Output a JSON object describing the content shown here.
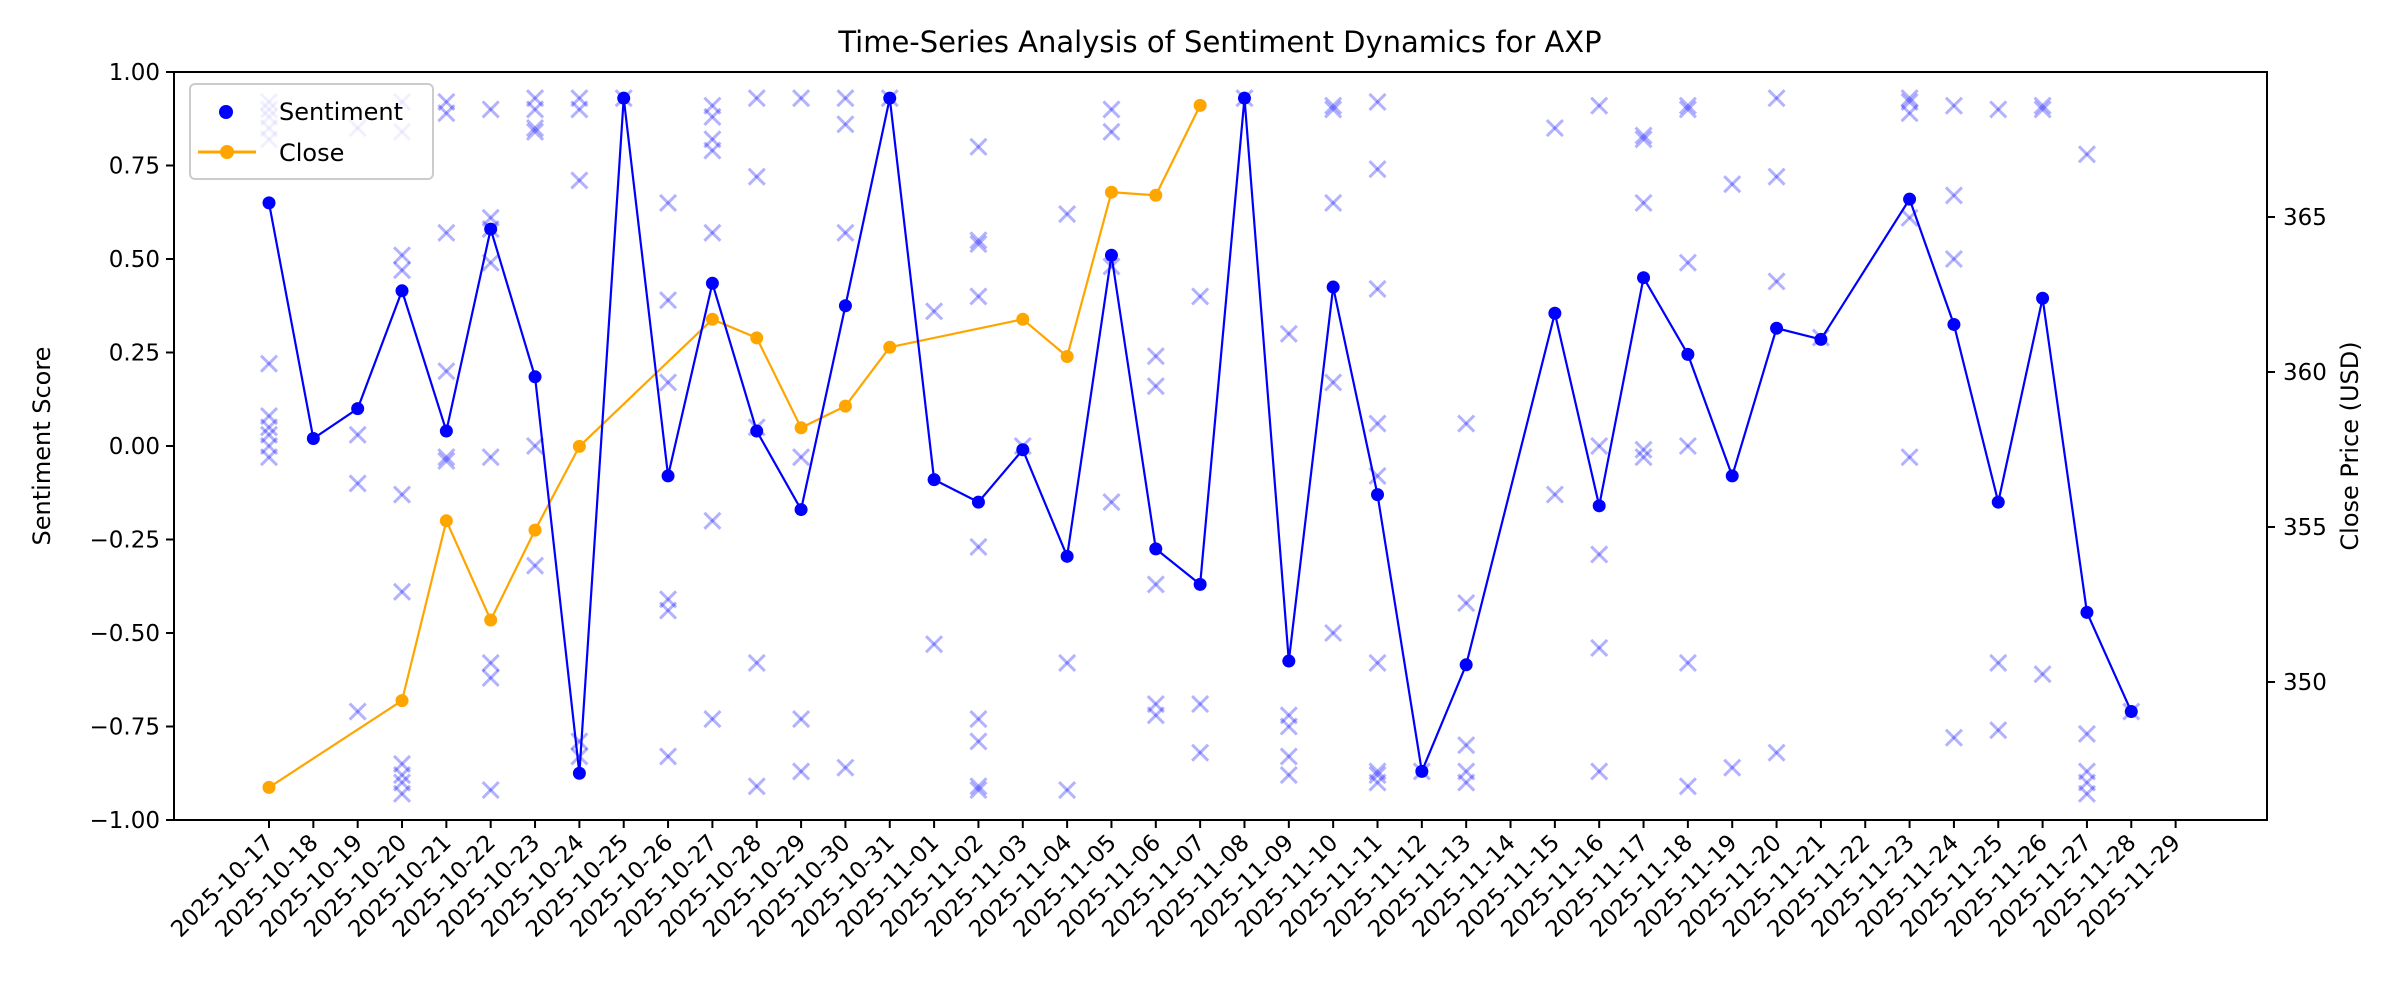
{
  "chart_data": {
    "type": "line",
    "title": "Time-Series Analysis of Sentiment Dynamics for AXP",
    "xlabel": "",
    "ylabel": "Sentiment Score",
    "ylabel_right": "Close Price (USD)",
    "ylim": [
      -1.0,
      1.0
    ],
    "ylim_right_ticks": [
      350,
      355,
      360,
      365
    ],
    "yticks": [
      "1.00",
      "0.75",
      "0.50",
      "0.25",
      "0.00",
      "−0.25",
      "−0.50",
      "−0.75",
      "−1.00"
    ],
    "grid": false,
    "legend_position": "upper left",
    "legend": [
      "Sentiment",
      "Close"
    ],
    "colors": {
      "sentiment": "#0000ff",
      "close": "#ffa500",
      "articles": "#0000ff"
    },
    "categories": [
      "2025-10-17",
      "2025-10-18",
      "2025-10-19",
      "2025-10-20",
      "2025-10-21",
      "2025-10-22",
      "2025-10-23",
      "2025-10-24",
      "2025-10-25",
      "2025-10-26",
      "2025-10-27",
      "2025-10-28",
      "2025-10-29",
      "2025-10-30",
      "2025-10-31",
      "2025-11-01",
      "2025-11-02",
      "2025-11-03",
      "2025-11-04",
      "2025-11-05",
      "2025-11-06",
      "2025-11-07",
      "2025-11-08",
      "2025-11-09",
      "2025-11-10",
      "2025-11-11",
      "2025-11-12",
      "2025-11-13",
      "2025-11-14",
      "2025-11-15",
      "2025-11-16",
      "2025-11-17",
      "2025-11-18",
      "2025-11-19",
      "2025-11-20",
      "2025-11-21",
      "2025-11-22",
      "2025-11-23",
      "2025-11-24",
      "2025-11-25",
      "2025-11-26",
      "2025-11-27",
      "2025-11-28",
      "2025-11-29"
    ],
    "series": [
      {
        "name": "Sentiment",
        "axis": "left",
        "points": [
          [
            "2025-10-17",
            0.65
          ],
          [
            "2025-10-18",
            0.02
          ],
          [
            "2025-10-19",
            0.1
          ],
          [
            "2025-10-20",
            0.415
          ],
          [
            "2025-10-21",
            0.04
          ],
          [
            "2025-10-22",
            0.58
          ],
          [
            "2025-10-23",
            0.185
          ],
          [
            "2025-10-24",
            -0.875
          ],
          [
            "2025-10-25",
            0.93
          ],
          [
            "2025-10-26",
            -0.08
          ],
          [
            "2025-10-27",
            0.435
          ],
          [
            "2025-10-28",
            0.04
          ],
          [
            "2025-10-29",
            -0.17
          ],
          [
            "2025-10-30",
            0.375
          ],
          [
            "2025-10-31",
            0.93
          ],
          [
            "2025-11-01",
            -0.09
          ],
          [
            "2025-11-02",
            -0.15
          ],
          [
            "2025-11-03",
            -0.01
          ],
          [
            "2025-11-04",
            -0.295
          ],
          [
            "2025-11-05",
            0.51
          ],
          [
            "2025-11-06",
            -0.275
          ],
          [
            "2025-11-07",
            -0.37
          ],
          [
            "2025-11-08",
            0.93
          ],
          [
            "2025-11-09",
            -0.575
          ],
          [
            "2025-11-10",
            0.425
          ],
          [
            "2025-11-11",
            -0.13
          ],
          [
            "2025-11-12",
            -0.87
          ],
          [
            "2025-11-13",
            -0.585
          ],
          [
            "2025-11-15",
            0.355
          ],
          [
            "2025-11-16",
            -0.16
          ],
          [
            "2025-11-17",
            0.45
          ],
          [
            "2025-11-18",
            0.245
          ],
          [
            "2025-11-19",
            -0.08
          ],
          [
            "2025-11-20",
            0.315
          ],
          [
            "2025-11-21",
            0.285
          ],
          [
            "2025-11-23",
            0.66
          ],
          [
            "2025-11-24",
            0.325
          ],
          [
            "2025-11-25",
            -0.15
          ],
          [
            "2025-11-26",
            0.395
          ],
          [
            "2025-11-27",
            -0.445
          ],
          [
            "2025-11-28",
            -0.71
          ]
        ]
      },
      {
        "name": "Close",
        "axis": "right",
        "points": [
          [
            "2025-10-17",
            346.6
          ],
          [
            "2025-10-20",
            349.4
          ],
          [
            "2025-10-21",
            355.2
          ],
          [
            "2025-10-22",
            352.0
          ],
          [
            "2025-10-23",
            354.9
          ],
          [
            "2025-10-24",
            357.6
          ],
          [
            "2025-10-27",
            361.7
          ],
          [
            "2025-10-28",
            361.1
          ],
          [
            "2025-10-29",
            358.2
          ],
          [
            "2025-10-30",
            358.9
          ],
          [
            "2025-10-31",
            360.8
          ],
          [
            "2025-11-03",
            361.7
          ],
          [
            "2025-11-04",
            360.5
          ],
          [
            "2025-11-05",
            365.8
          ],
          [
            "2025-11-06",
            365.7
          ],
          [
            "2025-11-07",
            368.6
          ]
        ]
      }
    ],
    "article_scores": [
      [
        0,
        0.92
      ],
      [
        0,
        0.9
      ],
      [
        0,
        0.88
      ],
      [
        0,
        0.85
      ],
      [
        0,
        0.82
      ],
      [
        0,
        0.22
      ],
      [
        0,
        0.08
      ],
      [
        0,
        0.05
      ],
      [
        0,
        0.03
      ],
      [
        0,
        0.0
      ],
      [
        0,
        -0.03
      ],
      [
        2,
        0.85
      ],
      [
        2,
        0.03
      ],
      [
        2,
        -0.1
      ],
      [
        2,
        -0.71
      ],
      [
        3,
        0.92
      ],
      [
        3,
        0.84
      ],
      [
        3,
        0.51
      ],
      [
        3,
        0.47
      ],
      [
        3,
        -0.13
      ],
      [
        3,
        -0.39
      ],
      [
        3,
        -0.85
      ],
      [
        3,
        -0.88
      ],
      [
        3,
        -0.9
      ],
      [
        3,
        -0.93
      ],
      [
        4,
        0.92
      ],
      [
        4,
        0.89
      ],
      [
        4,
        0.57
      ],
      [
        4,
        0.2
      ],
      [
        4,
        -0.03
      ],
      [
        4,
        -0.04
      ],
      [
        5,
        0.9
      ],
      [
        5,
        0.61
      ],
      [
        5,
        0.58
      ],
      [
        5,
        0.49
      ],
      [
        5,
        -0.03
      ],
      [
        5,
        -0.58
      ],
      [
        5,
        -0.62
      ],
      [
        5,
        -0.92
      ],
      [
        6,
        0.93
      ],
      [
        6,
        0.9
      ],
      [
        6,
        0.85
      ],
      [
        6,
        0.84
      ],
      [
        6,
        0.0
      ],
      [
        6,
        -0.32
      ],
      [
        7,
        0.93
      ],
      [
        7,
        0.9
      ],
      [
        7,
        0.71
      ],
      [
        7,
        -0.79
      ],
      [
        7,
        -0.83
      ],
      [
        8,
        0.93
      ],
      [
        9,
        0.65
      ],
      [
        9,
        0.39
      ],
      [
        9,
        0.17
      ],
      [
        9,
        -0.41
      ],
      [
        9,
        -0.44
      ],
      [
        9,
        -0.83
      ],
      [
        10,
        0.91
      ],
      [
        10,
        0.88
      ],
      [
        10,
        0.82
      ],
      [
        10,
        0.79
      ],
      [
        10,
        0.57
      ],
      [
        10,
        -0.2
      ],
      [
        10,
        -0.73
      ],
      [
        11,
        0.93
      ],
      [
        11,
        0.72
      ],
      [
        11,
        0.05
      ],
      [
        11,
        -0.58
      ],
      [
        11,
        -0.91
      ],
      [
        12,
        0.93
      ],
      [
        12,
        -0.03
      ],
      [
        12,
        -0.73
      ],
      [
        12,
        -0.87
      ],
      [
        13,
        0.93
      ],
      [
        13,
        0.86
      ],
      [
        13,
        0.57
      ],
      [
        13,
        -0.86
      ],
      [
        14,
        0.93
      ],
      [
        15,
        0.36
      ],
      [
        15,
        -0.53
      ],
      [
        16,
        0.8
      ],
      [
        16,
        0.55
      ],
      [
        16,
        0.54
      ],
      [
        16,
        0.4
      ],
      [
        16,
        -0.27
      ],
      [
        16,
        -0.73
      ],
      [
        16,
        -0.79
      ],
      [
        16,
        -0.91
      ],
      [
        16,
        -0.92
      ],
      [
        17,
        0.0
      ],
      [
        18,
        0.62
      ],
      [
        18,
        -0.58
      ],
      [
        18,
        -0.92
      ],
      [
        19,
        0.9
      ],
      [
        19,
        0.84
      ],
      [
        19,
        0.48
      ],
      [
        19,
        -0.15
      ],
      [
        20,
        0.24
      ],
      [
        20,
        0.16
      ],
      [
        20,
        -0.37
      ],
      [
        20,
        -0.69
      ],
      [
        20,
        -0.72
      ],
      [
        21,
        0.4
      ],
      [
        21,
        -0.69
      ],
      [
        21,
        -0.82
      ],
      [
        22,
        0.93
      ],
      [
        23,
        0.3
      ],
      [
        23,
        -0.72
      ],
      [
        23,
        -0.75
      ],
      [
        23,
        -0.83
      ],
      [
        23,
        -0.88
      ],
      [
        24,
        0.91
      ],
      [
        24,
        0.9
      ],
      [
        24,
        0.65
      ],
      [
        24,
        0.17
      ],
      [
        24,
        -0.5
      ],
      [
        25,
        0.92
      ],
      [
        25,
        0.74
      ],
      [
        25,
        0.42
      ],
      [
        25,
        0.06
      ],
      [
        25,
        -0.08
      ],
      [
        25,
        -0.58
      ],
      [
        25,
        -0.87
      ],
      [
        25,
        -0.88
      ],
      [
        25,
        -0.9
      ],
      [
        26,
        -0.87
      ],
      [
        27,
        0.06
      ],
      [
        27,
        -0.42
      ],
      [
        27,
        -0.8
      ],
      [
        27,
        -0.87
      ],
      [
        27,
        -0.9
      ],
      [
        29,
        0.85
      ],
      [
        29,
        -0.13
      ],
      [
        30,
        0.91
      ],
      [
        30,
        0.0
      ],
      [
        30,
        -0.29
      ],
      [
        30,
        -0.54
      ],
      [
        30,
        -0.87
      ],
      [
        31,
        0.83
      ],
      [
        31,
        0.82
      ],
      [
        31,
        0.65
      ],
      [
        31,
        -0.01
      ],
      [
        31,
        -0.03
      ],
      [
        32,
        0.91
      ],
      [
        32,
        0.9
      ],
      [
        32,
        0.49
      ],
      [
        32,
        0.0
      ],
      [
        32,
        -0.58
      ],
      [
        32,
        -0.91
      ],
      [
        33,
        0.7
      ],
      [
        33,
        -0.86
      ],
      [
        34,
        0.93
      ],
      [
        34,
        0.72
      ],
      [
        34,
        0.44
      ],
      [
        34,
        -0.82
      ],
      [
        35,
        0.29
      ],
      [
        37,
        0.93
      ],
      [
        37,
        0.92
      ],
      [
        37,
        0.89
      ],
      [
        37,
        0.61
      ],
      [
        37,
        -0.03
      ],
      [
        38,
        0.91
      ],
      [
        38,
        0.67
      ],
      [
        38,
        0.5
      ],
      [
        38,
        -0.78
      ],
      [
        39,
        0.9
      ],
      [
        39,
        -0.58
      ],
      [
        39,
        -0.76
      ],
      [
        40,
        0.91
      ],
      [
        40,
        0.9
      ],
      [
        40,
        -0.61
      ],
      [
        41,
        0.78
      ],
      [
        41,
        -0.77
      ],
      [
        41,
        -0.87
      ],
      [
        41,
        -0.9
      ],
      [
        41,
        -0.93
      ],
      [
        42,
        -0.71
      ]
    ]
  }
}
